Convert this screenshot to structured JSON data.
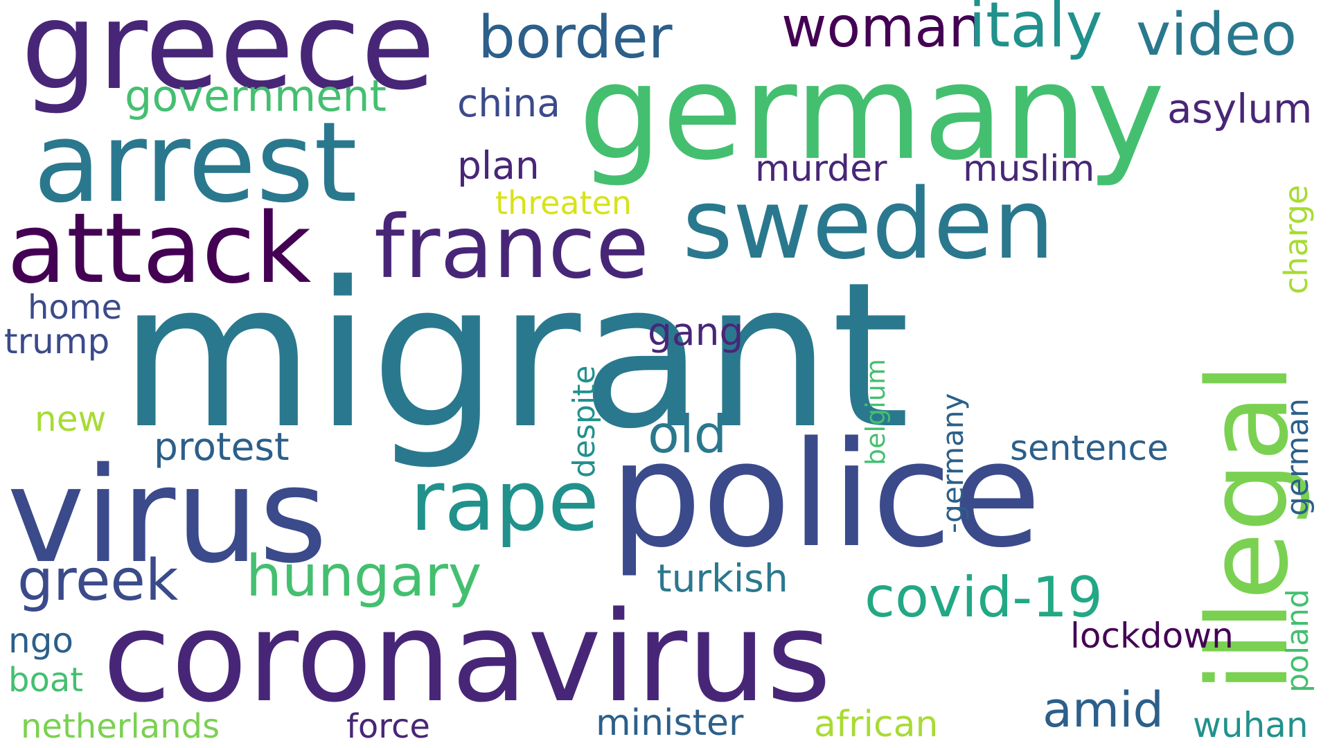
{
  "words": {
    "migrant": "migrant",
    "germany": "germany",
    "police": "police",
    "coronavirus": "coronavirus",
    "greece": "greece",
    "arrest": "arrest",
    "virus": "virus",
    "illegal": "illegal",
    "sweden": "sweden",
    "attack": "attack",
    "france": "france",
    "rape": "rape",
    "border": "border",
    "woman": "woman",
    "italy": "italy",
    "video": "video",
    "government": "government",
    "china": "china",
    "asylum": "asylum",
    "plan": "plan",
    "murder": "murder",
    "muslim": "muslim",
    "threaten": "threaten",
    "charge": "charge",
    "home": "home",
    "trump": "trump",
    "gang": "gang",
    "despite": "despite",
    "belgium": "belgium",
    "dash_germany": "-germany",
    "new": "new",
    "old": "old",
    "protest": "protest",
    "sentence": "sentence",
    "german": "german",
    "greek": "greek",
    "hungary": "hungary",
    "covid19": "covid-19",
    "turkish": "turkish",
    "ngo": "ngo",
    "boat": "boat",
    "lockdown": "lockdown",
    "poland": "poland",
    "amid": "amid",
    "netherlands": "netherlands",
    "force": "force",
    "minister": "minister",
    "african": "african",
    "wuhan": "wuhan"
  },
  "colors": {
    "background": "#ffffff",
    "palette": [
      "#440154",
      "#482677",
      "#3b4a8a",
      "#2c5f8a",
      "#2a788e",
      "#21918c",
      "#22a884",
      "#44bf70",
      "#7ad151",
      "#a8db34",
      "#d8e219"
    ]
  }
}
